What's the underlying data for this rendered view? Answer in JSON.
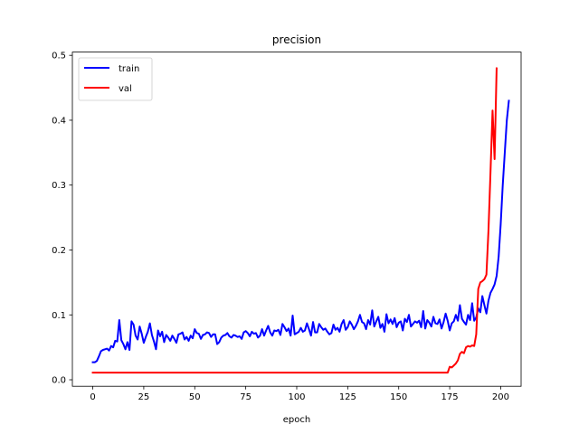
{
  "chart_data": {
    "type": "line",
    "title": "precision",
    "xlabel": "epoch",
    "ylabel": "",
    "xlim": [
      -10,
      210
    ],
    "ylim": [
      -0.01,
      0.505
    ],
    "xticks": [
      0,
      25,
      50,
      75,
      100,
      125,
      150,
      175,
      200
    ],
    "yticks": [
      0.0,
      0.1,
      0.2,
      0.3,
      0.4,
      0.5
    ],
    "ytick_labels": [
      "0.0",
      "0.1",
      "0.2",
      "0.3",
      "0.4",
      "0.5"
    ],
    "grid": false,
    "legend": "top-left",
    "series": [
      {
        "name": "train",
        "color": "#0000ff",
        "values": [
          0.027,
          0.027,
          0.029,
          0.036,
          0.044,
          0.046,
          0.047,
          0.048,
          0.045,
          0.052,
          0.05,
          0.06,
          0.059,
          0.092,
          0.061,
          0.055,
          0.047,
          0.058,
          0.046,
          0.09,
          0.085,
          0.068,
          0.062,
          0.082,
          0.071,
          0.057,
          0.066,
          0.074,
          0.087,
          0.069,
          0.059,
          0.047,
          0.076,
          0.067,
          0.074,
          0.058,
          0.069,
          0.065,
          0.06,
          0.068,
          0.063,
          0.057,
          0.07,
          0.071,
          0.073,
          0.062,
          0.066,
          0.06,
          0.068,
          0.064,
          0.078,
          0.072,
          0.071,
          0.063,
          0.069,
          0.07,
          0.073,
          0.072,
          0.066,
          0.07,
          0.07,
          0.055,
          0.058,
          0.065,
          0.068,
          0.069,
          0.072,
          0.067,
          0.065,
          0.069,
          0.068,
          0.066,
          0.067,
          0.063,
          0.073,
          0.075,
          0.072,
          0.067,
          0.074,
          0.071,
          0.072,
          0.065,
          0.068,
          0.078,
          0.068,
          0.076,
          0.083,
          0.073,
          0.068,
          0.076,
          0.075,
          0.077,
          0.069,
          0.086,
          0.081,
          0.075,
          0.079,
          0.068,
          0.099,
          0.07,
          0.072,
          0.074,
          0.08,
          0.074,
          0.076,
          0.087,
          0.078,
          0.068,
          0.089,
          0.073,
          0.073,
          0.086,
          0.081,
          0.077,
          0.079,
          0.074,
          0.07,
          0.072,
          0.085,
          0.077,
          0.08,
          0.074,
          0.086,
          0.092,
          0.077,
          0.081,
          0.09,
          0.085,
          0.078,
          0.083,
          0.09,
          0.1,
          0.089,
          0.087,
          0.078,
          0.092,
          0.085,
          0.107,
          0.082,
          0.09,
          0.097,
          0.08,
          0.086,
          0.074,
          0.101,
          0.087,
          0.093,
          0.086,
          0.095,
          0.081,
          0.088,
          0.09,
          0.076,
          0.094,
          0.089,
          0.1,
          0.082,
          0.086,
          0.09,
          0.088,
          0.091,
          0.081,
          0.106,
          0.079,
          0.092,
          0.088,
          0.082,
          0.097,
          0.087,
          0.086,
          0.093,
          0.079,
          0.089,
          0.102,
          0.091,
          0.076,
          0.087,
          0.09,
          0.1,
          0.091,
          0.115,
          0.094,
          0.089,
          0.085,
          0.1,
          0.092,
          0.118,
          0.091,
          0.096,
          0.11,
          0.104,
          0.129,
          0.115,
          0.102,
          0.122,
          0.134,
          0.14,
          0.147,
          0.16,
          0.19,
          0.24,
          0.3,
          0.35,
          0.4,
          0.43
        ]
      },
      {
        "name": "val",
        "color": "#ff0000",
        "values": [
          0.011,
          0.011,
          0.011,
          0.011,
          0.011,
          0.011,
          0.011,
          0.011,
          0.011,
          0.011,
          0.011,
          0.011,
          0.011,
          0.011,
          0.011,
          0.011,
          0.011,
          0.011,
          0.011,
          0.011,
          0.011,
          0.011,
          0.011,
          0.011,
          0.011,
          0.011,
          0.011,
          0.011,
          0.011,
          0.011,
          0.011,
          0.011,
          0.011,
          0.011,
          0.011,
          0.011,
          0.011,
          0.011,
          0.011,
          0.011,
          0.011,
          0.011,
          0.011,
          0.011,
          0.011,
          0.011,
          0.011,
          0.011,
          0.011,
          0.011,
          0.011,
          0.011,
          0.011,
          0.011,
          0.011,
          0.011,
          0.011,
          0.011,
          0.011,
          0.011,
          0.011,
          0.011,
          0.011,
          0.011,
          0.011,
          0.011,
          0.011,
          0.011,
          0.011,
          0.011,
          0.011,
          0.011,
          0.011,
          0.011,
          0.011,
          0.011,
          0.011,
          0.011,
          0.011,
          0.011,
          0.011,
          0.011,
          0.011,
          0.011,
          0.011,
          0.011,
          0.011,
          0.011,
          0.011,
          0.011,
          0.011,
          0.011,
          0.011,
          0.011,
          0.011,
          0.011,
          0.011,
          0.011,
          0.011,
          0.011,
          0.011,
          0.011,
          0.011,
          0.011,
          0.011,
          0.011,
          0.011,
          0.011,
          0.011,
          0.011,
          0.011,
          0.011,
          0.011,
          0.011,
          0.011,
          0.011,
          0.011,
          0.011,
          0.011,
          0.011,
          0.011,
          0.011,
          0.011,
          0.011,
          0.011,
          0.011,
          0.011,
          0.011,
          0.011,
          0.011,
          0.011,
          0.011,
          0.011,
          0.011,
          0.011,
          0.011,
          0.011,
          0.011,
          0.011,
          0.011,
          0.011,
          0.011,
          0.011,
          0.011,
          0.011,
          0.011,
          0.011,
          0.011,
          0.011,
          0.011,
          0.011,
          0.011,
          0.011,
          0.011,
          0.011,
          0.011,
          0.011,
          0.011,
          0.011,
          0.011,
          0.011,
          0.011,
          0.011,
          0.011,
          0.011,
          0.011,
          0.011,
          0.011,
          0.011,
          0.011,
          0.011,
          0.011,
          0.011,
          0.011,
          0.011,
          0.02,
          0.019,
          0.022,
          0.025,
          0.03,
          0.04,
          0.043,
          0.041,
          0.05,
          0.052,
          0.051,
          0.053,
          0.052,
          0.07,
          0.14,
          0.15,
          0.152,
          0.155,
          0.162,
          0.23,
          0.32,
          0.415,
          0.34,
          0.48
        ]
      }
    ]
  }
}
